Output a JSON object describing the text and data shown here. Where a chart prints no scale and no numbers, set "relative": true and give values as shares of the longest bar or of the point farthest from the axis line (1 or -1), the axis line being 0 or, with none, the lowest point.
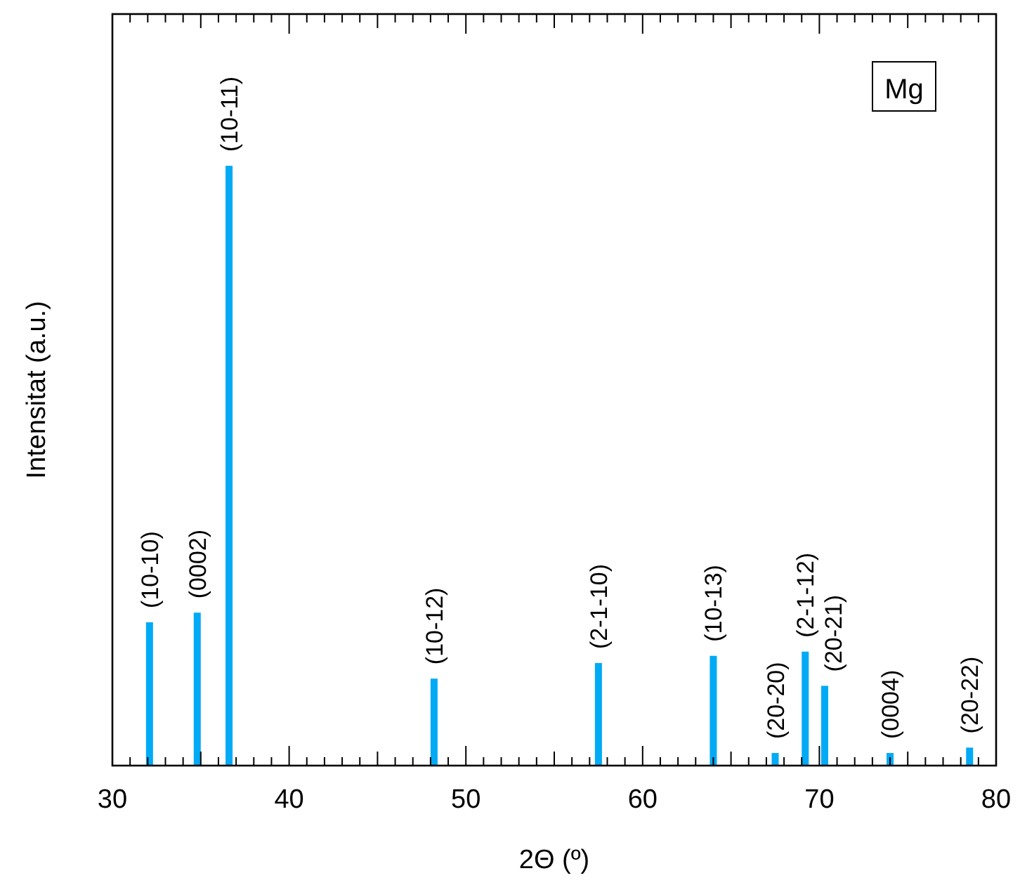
{
  "chart_data": {
    "type": "bar",
    "xlabel": "2Θ (º)",
    "ylabel": "Intensitat (a.u.)",
    "relative": true,
    "x": [
      32.1,
      34.8,
      36.6,
      48.2,
      57.5,
      64.0,
      67.5,
      69.2,
      70.3,
      74.0,
      78.5
    ],
    "values": [
      0.239,
      0.255,
      1,
      0.145,
      0.171,
      0.183,
      0.021,
      0.19,
      0.133,
      0.021,
      0.03
    ],
    "color": "#00aaf5",
    "xlim": [
      30,
      80
    ],
    "xticks": [
      30,
      40,
      50,
      60,
      70,
      80
    ],
    "annotations": [
      "Mg",
      {
        "text": "(10-10)",
        "x": 32.1,
        "y": 0.239
      },
      {
        "text": "(0002)",
        "x": 34.8,
        "y": 0.255
      },
      {
        "text": "(10-11)",
        "x": 36.6,
        "y": 1
      },
      {
        "text": "(10-12)",
        "x": 48.2,
        "y": 0.145
      },
      {
        "text": "(2-1-10)",
        "x": 57.5,
        "y": 0.171
      },
      {
        "text": "(10-13)",
        "x": 64.0,
        "y": 0.183
      },
      {
        "text": "(20-20)",
        "x": 67.5,
        "y": 0.021
      },
      {
        "text": "(2-1-12)",
        "x": 69.2,
        "y": 0.19
      },
      {
        "text": "(20-21)",
        "x": 70.3,
        "y": 0.133
      },
      {
        "text": "(0004)",
        "x": 74.0,
        "y": 0.021
      },
      {
        "text": "(20-22)",
        "x": 78.5,
        "y": 0.03
      }
    ]
  }
}
